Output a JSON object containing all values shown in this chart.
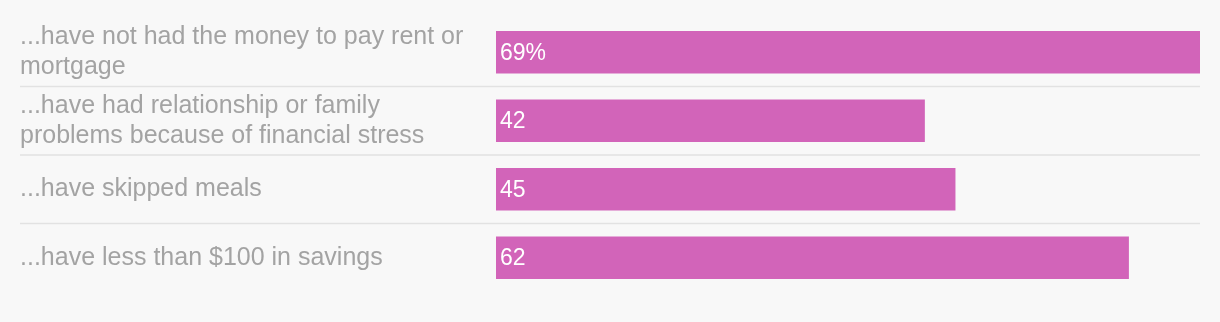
{
  "chart_data": {
    "type": "bar",
    "orientation": "horizontal",
    "categories": [
      "...have not had the money to pay rent or mortgage",
      "...have had relationship or family problems because of financial stress",
      "...have skipped meals",
      "...have less than $100 in savings"
    ],
    "values": [
      69,
      42,
      45,
      62
    ],
    "value_labels": [
      "69%",
      "42",
      "45",
      "62"
    ],
    "color": "#d264b9",
    "grid": "y",
    "legend": false
  }
}
